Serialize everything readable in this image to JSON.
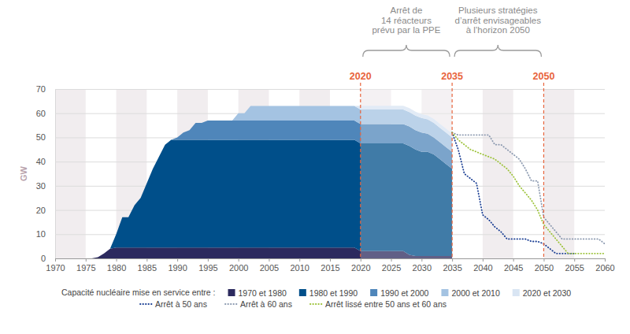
{
  "chart_data": {
    "type": "area",
    "y_label": "GW",
    "legend_title": "Capacité nucléaire mise en service entre :",
    "legend": "bottom",
    "stacked": true,
    "grid": true,
    "xlim": [
      1970,
      2060
    ],
    "ylim": [
      0,
      70
    ],
    "xticks": [
      1970,
      1975,
      1980,
      1985,
      1990,
      1995,
      2000,
      2005,
      2010,
      2015,
      2020,
      2025,
      2030,
      2035,
      2040,
      2045,
      2050,
      2055,
      2060
    ],
    "yticks": [
      0,
      10,
      20,
      30,
      40,
      50,
      60,
      70
    ],
    "reference_lines": [
      2020,
      2035,
      2050
    ],
    "annotations": [
      {
        "lines": [
          "Arrêt de",
          "14 réacteurs",
          "prévu par la PPE"
        ],
        "x": [
          2020,
          2035
        ]
      },
      {
        "lines": [
          "Plusieurs stratégies",
          "d’arrêt envisageables",
          "à l’horizon 2050"
        ],
        "x": [
          2035,
          2050
        ]
      }
    ],
    "x": [
      1970,
      1971,
      1972,
      1973,
      1974,
      1975,
      1976,
      1977,
      1978,
      1979,
      1980,
      1981,
      1982,
      1983,
      1984,
      1985,
      1986,
      1987,
      1988,
      1989,
      1990,
      1991,
      1992,
      1993,
      1994,
      1995,
      1996,
      1997,
      1998,
      1999,
      2000,
      2001,
      2002,
      2003,
      2004,
      2005,
      2006,
      2007,
      2008,
      2009,
      2010,
      2011,
      2012,
      2013,
      2014,
      2015,
      2016,
      2017,
      2018,
      2019,
      2020,
      2021,
      2022,
      2023,
      2024,
      2025,
      2026,
      2027,
      2028,
      2029,
      2030,
      2031,
      2032,
      2033,
      2034,
      2035,
      2036,
      2037,
      2038,
      2039,
      2040,
      2041,
      2042,
      2043,
      2044,
      2045,
      2046,
      2047,
      2048,
      2049,
      2050,
      2051,
      2052,
      2053,
      2054,
      2055,
      2056,
      2057,
      2058,
      2059,
      2060
    ],
    "series": [
      {
        "name": "1970 et 1980",
        "type": "area",
        "color": "#2c2a5e",
        "values": [
          0,
          0,
          0,
          0,
          0,
          0,
          0,
          0.5,
          2,
          4,
          4.5,
          4.5,
          4.5,
          4.5,
          4.5,
          4.5,
          4.5,
          4.5,
          4.5,
          4.5,
          4.5,
          4.5,
          4.5,
          4.5,
          4.5,
          4.5,
          4.5,
          4.5,
          4.5,
          4.5,
          4.5,
          4.5,
          4.5,
          4.5,
          4.5,
          4.5,
          4.5,
          4.5,
          4.5,
          4.5,
          4.5,
          4.5,
          4.5,
          4.5,
          4.5,
          4.5,
          4.5,
          4.5,
          4.5,
          4.5,
          3,
          3,
          3,
          3,
          3,
          3,
          3,
          3,
          1.5,
          1,
          1,
          1,
          1,
          1,
          1,
          1,
          null,
          null,
          null,
          null,
          null,
          null,
          null,
          null,
          null,
          null,
          null,
          null,
          null,
          null,
          null,
          null,
          null,
          null,
          null,
          null,
          null,
          null,
          null,
          null,
          null
        ]
      },
      {
        "name": "1980 et 1990",
        "type": "area",
        "color": "#004f8a",
        "values": [
          0,
          0,
          0,
          0,
          0,
          0,
          0,
          0,
          0,
          0,
          5.5,
          12.5,
          12.5,
          17.5,
          20.5,
          26.5,
          32.5,
          37.5,
          42.5,
          44.5,
          44.5,
          44.5,
          44.5,
          44.5,
          44.5,
          44.5,
          44.5,
          44.5,
          44.5,
          44.5,
          44.5,
          44.5,
          44.5,
          44.5,
          44.5,
          44.5,
          44.5,
          44.5,
          44.5,
          44.5,
          44.5,
          44.5,
          44.5,
          44.5,
          44.5,
          44.5,
          44.5,
          44.5,
          44.5,
          44.5,
          44.5,
          44.5,
          44.5,
          44.5,
          44.5,
          44.5,
          44.5,
          44.5,
          45,
          44,
          43,
          43,
          42,
          40,
          38,
          36,
          null,
          null,
          null,
          null,
          null,
          null,
          null,
          null,
          null,
          null,
          null,
          null,
          null,
          null,
          null,
          null,
          null,
          null,
          null,
          null,
          null,
          null,
          null,
          null,
          null
        ]
      },
      {
        "name": "1990 et 2000",
        "type": "area",
        "color": "#4f86ba",
        "values": [
          0,
          0,
          0,
          0,
          0,
          0,
          0,
          0,
          0,
          0,
          0,
          0,
          0,
          0,
          0,
          0,
          0,
          0,
          0,
          0,
          1,
          3,
          4,
          7,
          7,
          8,
          8,
          8,
          8,
          8,
          8,
          8,
          8,
          8,
          8,
          8,
          8,
          8,
          8,
          8,
          8,
          8,
          8,
          8,
          8,
          8,
          8,
          8,
          8,
          8,
          8,
          8,
          8,
          8,
          8,
          8,
          8,
          8,
          8,
          8,
          8,
          7.5,
          7,
          7,
          7,
          7,
          null,
          null,
          null,
          null,
          null,
          null,
          null,
          null,
          null,
          null,
          null,
          null,
          null,
          null,
          null,
          null,
          null,
          null,
          null,
          null,
          null,
          null,
          null,
          null,
          null
        ]
      },
      {
        "name": "2000 et 2010",
        "type": "area",
        "color": "#a4c3e2",
        "values": [
          0,
          0,
          0,
          0,
          0,
          0,
          0,
          0,
          0,
          0,
          0,
          0,
          0,
          0,
          0,
          0,
          0,
          0,
          0,
          0,
          0,
          0,
          0,
          0,
          0,
          0,
          0,
          0,
          0,
          0,
          3,
          3,
          6,
          6,
          6,
          6,
          6,
          6,
          6,
          6,
          6,
          6,
          6,
          6,
          6,
          6,
          6,
          6,
          6,
          6,
          6,
          6,
          6,
          6,
          6,
          6,
          6,
          6,
          6,
          6,
          6,
          6,
          6,
          6,
          6,
          6,
          null,
          null,
          null,
          null,
          null,
          null,
          null,
          null,
          null,
          null,
          null,
          null,
          null,
          null,
          null,
          null,
          null,
          null,
          null,
          null,
          null,
          null,
          null,
          null,
          null
        ]
      },
      {
        "name": "2020 et 2030",
        "type": "area",
        "color": "#d9e5f3",
        "values": [
          0,
          0,
          0,
          0,
          0,
          0,
          0,
          0,
          0,
          0,
          0,
          0,
          0,
          0,
          0,
          0,
          0,
          0,
          0,
          0,
          0,
          0,
          0,
          0,
          0,
          0,
          0,
          0,
          0,
          0,
          0,
          0,
          0,
          0,
          0,
          0,
          0,
          0,
          0,
          0,
          0,
          0,
          0,
          0,
          0,
          0,
          0,
          0,
          0,
          0,
          1.6,
          1.6,
          1.6,
          1.6,
          1.6,
          1.6,
          1.6,
          1.6,
          1.6,
          1.6,
          1.6,
          1.6,
          1.6,
          1.6,
          1.6,
          1.6,
          null,
          null,
          null,
          null,
          null,
          null,
          null,
          null,
          null,
          null,
          null,
          null,
          null,
          null,
          null,
          null,
          null,
          null,
          null,
          null,
          null,
          null,
          null,
          null,
          null
        ]
      },
      {
        "name": "Arrêt à 50 ans",
        "type": "line",
        "line_style": "dotted",
        "color": "#1b3f94",
        "values": [
          null,
          null,
          null,
          null,
          null,
          null,
          null,
          null,
          null,
          null,
          null,
          null,
          null,
          null,
          null,
          null,
          null,
          null,
          null,
          null,
          null,
          null,
          null,
          null,
          null,
          null,
          null,
          null,
          null,
          null,
          null,
          null,
          null,
          null,
          null,
          null,
          null,
          null,
          null,
          null,
          null,
          null,
          null,
          null,
          null,
          null,
          null,
          null,
          null,
          null,
          null,
          null,
          null,
          null,
          null,
          null,
          null,
          null,
          null,
          null,
          null,
          null,
          null,
          null,
          null,
          52,
          45,
          35,
          33,
          31,
          18,
          16,
          13,
          11,
          8,
          8,
          8,
          8,
          7,
          7,
          6,
          4,
          2,
          2,
          2,
          2,
          null,
          null,
          null,
          null,
          null
        ]
      },
      {
        "name": "Arrêt à 60 ans",
        "type": "line",
        "line_style": "dotted",
        "color": "#8c9ab0",
        "values": [
          null,
          null,
          null,
          null,
          null,
          null,
          null,
          null,
          null,
          null,
          null,
          null,
          null,
          null,
          null,
          null,
          null,
          null,
          null,
          null,
          null,
          null,
          null,
          null,
          null,
          null,
          null,
          null,
          null,
          null,
          null,
          null,
          null,
          null,
          null,
          null,
          null,
          null,
          null,
          null,
          null,
          null,
          null,
          null,
          null,
          null,
          null,
          null,
          null,
          null,
          null,
          null,
          null,
          null,
          null,
          null,
          null,
          null,
          null,
          null,
          null,
          null,
          null,
          null,
          null,
          52,
          51,
          51,
          51,
          51,
          51,
          51,
          47,
          47,
          45,
          43,
          41,
          37,
          32,
          32,
          17,
          14,
          11,
          8,
          8,
          8,
          8,
          8,
          8,
          8,
          6
        ]
      },
      {
        "name": "Arrêt lissé entre 50 ans et 60 ans",
        "type": "line",
        "line_style": "dotted",
        "color": "#9dc33b",
        "values": [
          null,
          null,
          null,
          null,
          null,
          null,
          null,
          null,
          null,
          null,
          null,
          null,
          null,
          null,
          null,
          null,
          null,
          null,
          null,
          null,
          null,
          null,
          null,
          null,
          null,
          null,
          null,
          null,
          null,
          null,
          null,
          null,
          null,
          null,
          null,
          null,
          null,
          null,
          null,
          null,
          null,
          null,
          null,
          null,
          null,
          null,
          null,
          null,
          null,
          null,
          null,
          null,
          null,
          null,
          null,
          null,
          null,
          null,
          null,
          null,
          null,
          null,
          null,
          null,
          null,
          52,
          49,
          47,
          45,
          44,
          43,
          42,
          41,
          39,
          37,
          34,
          30,
          27,
          24,
          20,
          14,
          11,
          8,
          5,
          2,
          2,
          2,
          2,
          2,
          2,
          2
        ]
      }
    ]
  }
}
